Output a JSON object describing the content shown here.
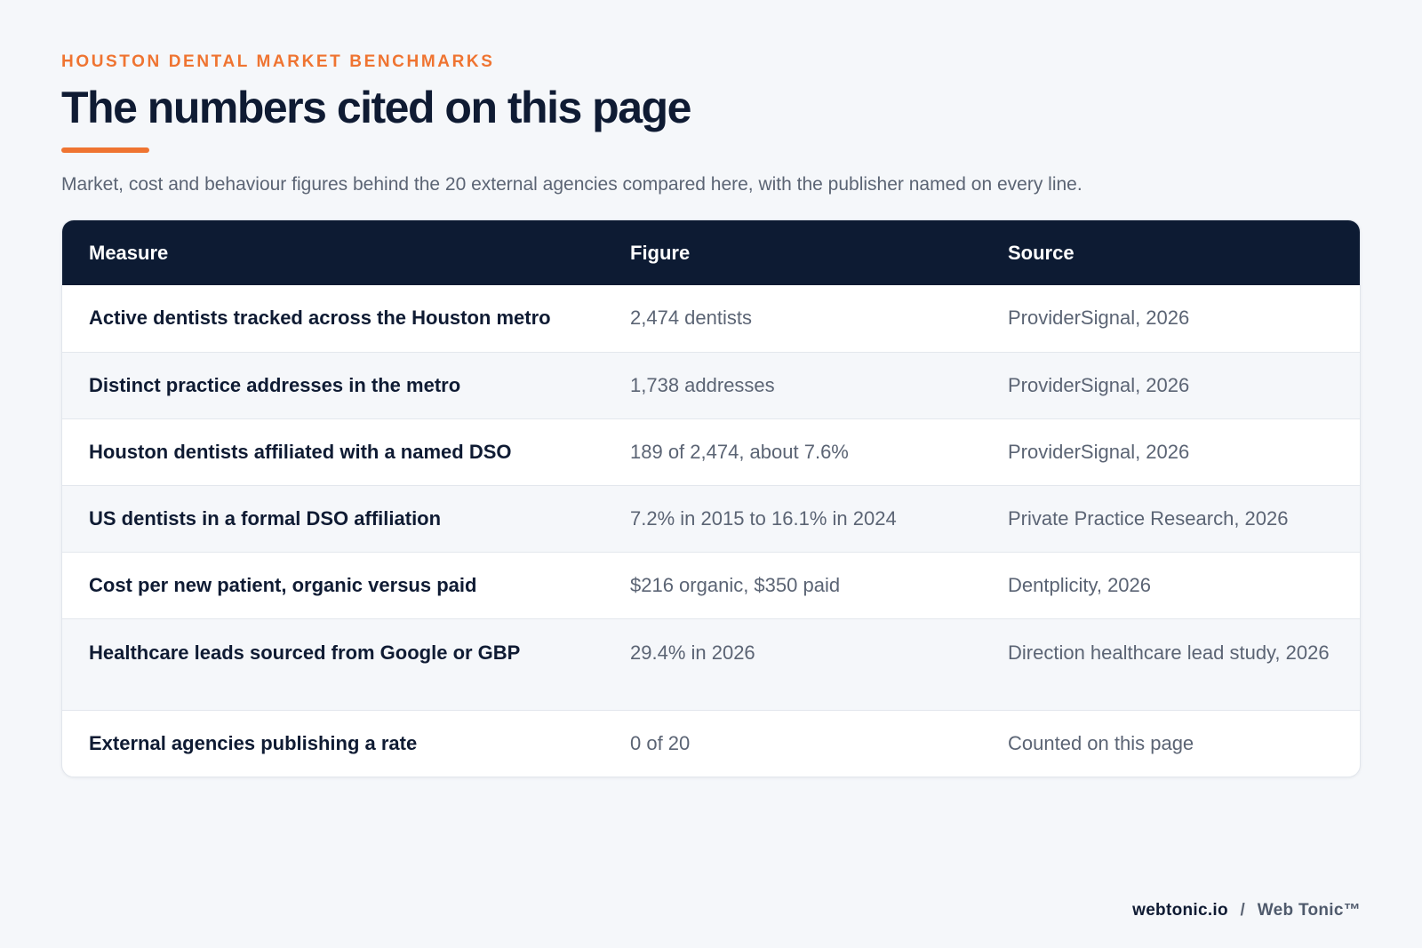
{
  "header": {
    "eyebrow": "HOUSTON DENTAL MARKET BENCHMARKS",
    "title": "The numbers cited on this page",
    "subtitle": "Market, cost and behaviour figures behind the 20 external agencies compared here, with the publisher named on every line."
  },
  "table": {
    "columns": [
      "Measure",
      "Figure",
      "Source"
    ],
    "rows": [
      {
        "measure": "Active dentists tracked across the Houston metro",
        "figure": "2,474 dentists",
        "source": "ProviderSignal, 2026"
      },
      {
        "measure": "Distinct practice addresses in the metro",
        "figure": "1,738 addresses",
        "source": "ProviderSignal, 2026"
      },
      {
        "measure": "Houston dentists affiliated with a named DSO",
        "figure": "189 of 2,474, about 7.6%",
        "source": "ProviderSignal, 2026"
      },
      {
        "measure": "US dentists in a formal DSO affiliation",
        "figure": "7.2% in 2015 to 16.1% in 2024",
        "source": "Private Practice Research, 2026"
      },
      {
        "measure": "Cost per new patient, organic versus paid",
        "figure": "$216 organic, $350 paid",
        "source": "Dentplicity, 2026"
      },
      {
        "measure": "Healthcare leads sourced from Google or GBP",
        "figure": "29.4% in 2026",
        "source": "Direction healthcare lead study, 2026"
      },
      {
        "measure": "External agencies publishing a rate",
        "figure": "0 of 20",
        "source": "Counted on this page"
      }
    ]
  },
  "footer": {
    "domain": "webtonic.io",
    "separator": "/",
    "brand": "Web Tonic™"
  },
  "colors": {
    "accent": "#ef7431",
    "header_bg": "#0d1b33",
    "text_dark": "#0f1b33",
    "text_muted": "#5b6474"
  }
}
